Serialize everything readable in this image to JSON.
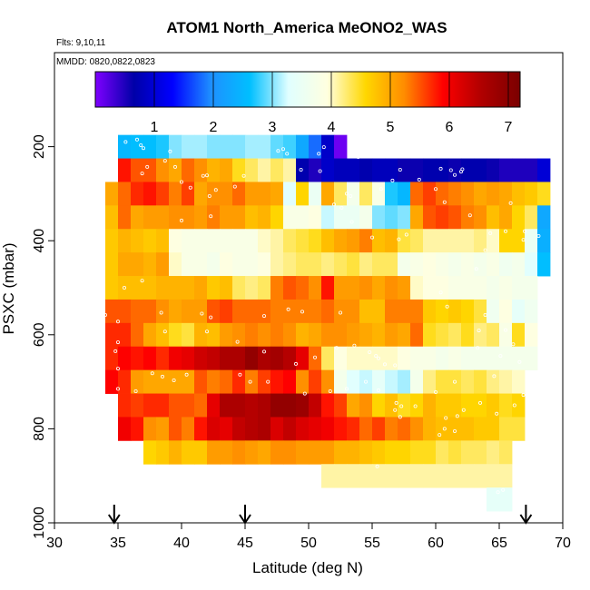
{
  "chart_data": {
    "type": "heatmap",
    "title": "ATOM1 North_America MeONO2_WAS",
    "flights_label": "Flts: 9,10,11",
    "dates_label": "MMDD: 0820,0822,0823",
    "xlabel": "Latitude (deg N)",
    "ylabel": "PSXC (mbar)",
    "xlim": [
      30,
      70
    ],
    "ylim": [
      1000,
      0
    ],
    "x_ticks": [
      "30",
      "35",
      "40",
      "45",
      "50",
      "55",
      "60",
      "65",
      "70"
    ],
    "y_ticks": [
      "200",
      "400",
      "600",
      "800",
      "1000"
    ],
    "colorbar": {
      "range": [
        0.0,
        7.2
      ],
      "ticks": [
        "1",
        "2",
        "3",
        "4",
        "5",
        "6",
        "7"
      ],
      "colors": [
        "#7f00ff",
        "#0000a8",
        "#0000ff",
        "#1e90ff",
        "#00bfff",
        "#e0ffff",
        "#ffffe0",
        "#ffd700",
        "#ff8c00",
        "#ff0000",
        "#b00000",
        "#7a0000"
      ]
    },
    "grid": false,
    "arrow_latitudes": [
      34.7,
      45.0,
      67.1
    ],
    "rows": [
      {
        "p": 200,
        "x0": 35.0,
        "dx": 1.0,
        "v": [
          2.5,
          2.6,
          2.6,
          2.7,
          3.0,
          3.1,
          3.1,
          3.0,
          3.0,
          3.0,
          3.1,
          3.1,
          2.9,
          2.8,
          2.3,
          1.8,
          0.9,
          0.1
        ]
      },
      {
        "p": 250,
        "x0": 35.0,
        "dx": 1.0,
        "v": [
          5.8,
          5.5,
          5.5,
          5.2,
          5.0,
          5.4,
          5.2,
          4.9,
          5.0,
          4.5,
          4.3,
          4.1,
          4.3,
          4.1,
          0.7,
          0.5,
          0.9,
          0.8,
          0.8,
          0.7,
          0.8,
          0.8,
          0.6,
          0.6,
          0.7,
          0.7,
          0.6,
          0.7,
          0.7,
          0.6,
          0.5,
          0.5,
          0.5,
          1.0
        ]
      },
      {
        "p": 300,
        "x0": 34.0,
        "dx": 1.0,
        "v": [
          5.0,
          5.4,
          5.7,
          5.8,
          5.6,
          5.3,
          5.6,
          5.0,
          5.2,
          5.2,
          5.4,
          5.1,
          5.1,
          5.0,
          3.3,
          4.6,
          3.5,
          5.0,
          4.3,
          3.7,
          4.3,
          3.8,
          2.7,
          2.5,
          5.4,
          5.6,
          5.4,
          5.3,
          5.2,
          5.0,
          5.1,
          5.0,
          4.8,
          4.7,
          4.5
        ]
      },
      {
        "p": 350,
        "x0": 34.0,
        "dx": 1.0,
        "v": [
          4.8,
          5.4,
          5.0,
          5.1,
          5.1,
          5.2,
          5.2,
          5.1,
          5.3,
          5.1,
          5.1,
          4.8,
          4.9,
          4.6,
          3.8,
          3.8,
          3.9,
          3.2,
          3.5,
          3.5,
          3.7,
          3.0,
          2.9,
          3.0,
          5.0,
          5.5,
          5.6,
          5.5,
          5.3,
          5.2,
          4.8,
          5.0,
          4.6,
          4.3,
          2.3
        ]
      },
      {
        "p": 400,
        "x0": 34.0,
        "dx": 1.0,
        "v": [
          4.7,
          4.9,
          4.8,
          4.7,
          4.8,
          3.9,
          3.8,
          3.8,
          3.8,
          3.8,
          3.8,
          3.8,
          4.0,
          4.1,
          4.3,
          4.4,
          4.5,
          4.8,
          5.0,
          5.1,
          5.3,
          4.8,
          4.9,
          4.4,
          4.3,
          4.1,
          4.1,
          4.1,
          4.1,
          4.2,
          4.0,
          4.6,
          4.6,
          3.5,
          2.4
        ]
      },
      {
        "p": 450,
        "x0": 34.0,
        "dx": 1.0,
        "v": [
          4.7,
          5.0,
          5.0,
          4.9,
          5.1,
          4.0,
          3.8,
          3.8,
          3.7,
          3.9,
          3.8,
          3.8,
          3.9,
          4.1,
          4.2,
          4.3,
          4.3,
          4.2,
          4.3,
          4.4,
          4.2,
          4.3,
          4.3,
          3.7,
          3.8,
          3.9,
          3.8,
          3.7,
          3.8,
          3.7,
          3.8,
          3.6,
          3.7,
          3.3,
          2.6
        ]
      },
      {
        "p": 500,
        "x0": 34.0,
        "dx": 1.0,
        "v": [
          4.7,
          4.8,
          4.8,
          4.8,
          4.9,
          4.9,
          4.9,
          5.0,
          4.7,
          4.8,
          4.3,
          4.2,
          4.3,
          5.3,
          5.5,
          5.4,
          5.2,
          5.8,
          5.1,
          5.1,
          5.2,
          5.0,
          5.2,
          5.1,
          4.0,
          3.9,
          3.9,
          3.8,
          3.8,
          3.8,
          3.7,
          3.8,
          3.7,
          3.7
        ]
      },
      {
        "p": 550,
        "x0": 34.0,
        "dx": 1.0,
        "v": [
          5.5,
          5.5,
          5.4,
          5.4,
          5.2,
          5.0,
          5.1,
          5.1,
          5.5,
          5.6,
          5.4,
          5.4,
          5.4,
          5.3,
          5.3,
          5.3,
          5.3,
          5.4,
          5.2,
          5.2,
          4.8,
          4.8,
          5.3,
          5.3,
          5.3,
          4.7,
          4.6,
          4.7,
          4.6,
          4.4,
          3.6,
          3.9,
          3.4,
          3.6
        ]
      },
      {
        "p": 600,
        "x0": 34.0,
        "dx": 1.0,
        "v": [
          5.7,
          5.7,
          5.4,
          5.0,
          4.8,
          4.5,
          4.4,
          4.9,
          4.8,
          5.1,
          5.2,
          5.3,
          5.2,
          5.3,
          5.2,
          4.9,
          5.0,
          5.2,
          5.2,
          5.1,
          5.0,
          4.9,
          5.1,
          5.0,
          5.4,
          4.5,
          4.4,
          4.3,
          4.5,
          4.2,
          4.3,
          3.8,
          4.5,
          3.9
        ]
      },
      {
        "p": 650,
        "x0": 34.0,
        "dx": 1.0,
        "v": [
          5.7,
          5.9,
          5.8,
          5.9,
          5.7,
          6.0,
          6.1,
          6.3,
          6.4,
          6.6,
          6.6,
          6.9,
          6.6,
          6.7,
          6.5,
          6.1,
          5.4,
          4.3,
          3.9,
          4.0,
          4.0,
          4.0,
          4.0,
          3.9,
          3.8,
          3.8,
          3.7,
          3.8,
          3.7,
          3.7,
          3.7,
          3.7,
          3.7,
          3.7
        ]
      },
      {
        "p": 700,
        "x0": 34.0,
        "dx": 1.0,
        "v": [
          5.9,
          5.7,
          5.1,
          5.0,
          5.0,
          5.0,
          5.0,
          5.5,
          5.3,
          5.4,
          5.7,
          5.3,
          5.6,
          5.8,
          5.9,
          5.2,
          5.6,
          5.2,
          3.7,
          3.3,
          3.2,
          3.4,
          3.2,
          3.1,
          3.7,
          4.2,
          4.4,
          4.4,
          4.3,
          4.4,
          4.2,
          4.1,
          4.0
        ]
      },
      {
        "p": 750,
        "x0": 35.0,
        "dx": 1.0,
        "v": [
          5.7,
          5.6,
          5.7,
          5.7,
          5.5,
          5.5,
          5.4,
          6.1,
          6.6,
          6.6,
          6.5,
          6.6,
          6.9,
          6.9,
          6.8,
          6.4,
          5.8,
          5.6,
          5.0,
          5.2,
          4.6,
          4.8,
          4.5,
          4.6,
          4.9,
          4.7,
          4.7,
          4.6,
          4.6,
          4.7,
          4.5,
          4.6
        ]
      },
      {
        "p": 800,
        "x0": 35.0,
        "dx": 1.0,
        "v": [
          6.0,
          5.8,
          5.2,
          5.1,
          5.5,
          5.3,
          5.8,
          6.2,
          6.1,
          6.4,
          6.5,
          6.6,
          6.2,
          6.4,
          6.2,
          6.1,
          6.0,
          5.8,
          5.7,
          5.4,
          5.6,
          5.3,
          5.4,
          5.2,
          4.9,
          4.8,
          4.8,
          4.8,
          4.7,
          4.7,
          4.4,
          4.4
        ]
      },
      {
        "p": 850,
        "x0": 37.0,
        "dx": 1.0,
        "v": [
          4.6,
          4.7,
          4.9,
          4.7,
          4.7,
          5.1,
          5.1,
          5.2,
          5.1,
          5.0,
          5.2,
          5.2,
          5.1,
          5.1,
          5.1,
          4.9,
          4.9,
          4.8,
          4.7,
          4.6,
          4.6,
          4.5,
          4.5,
          4.3,
          4.4,
          4.3,
          4.3,
          4.2,
          4.3
        ]
      },
      {
        "p": 900,
        "x0": 51.0,
        "dx": 1.0,
        "v": [
          4.1,
          4.1,
          4.1,
          4.1,
          4.1,
          4.1,
          4.1,
          4.1,
          4.1,
          4.1,
          4.1,
          4.1,
          4.1,
          4.1,
          4.1
        ]
      },
      {
        "p": 950,
        "x0": 64.0,
        "dx": 1.0,
        "v": [
          3.4,
          3.4
        ]
      }
    ],
    "samples": [
      [
        35.6,
        190
      ],
      [
        36.5,
        185
      ],
      [
        36.8,
        197
      ],
      [
        37.0,
        203
      ],
      [
        39.1,
        210
      ],
      [
        38.7,
        230
      ],
      [
        37.3,
        243
      ],
      [
        36.9,
        257
      ],
      [
        39.5,
        243
      ],
      [
        42.0,
        261
      ],
      [
        41.7,
        262
      ],
      [
        44.9,
        262
      ],
      [
        40.0,
        275
      ],
      [
        40.7,
        287
      ],
      [
        42.7,
        292
      ],
      [
        44.2,
        285
      ],
      [
        42.2,
        305
      ],
      [
        42.3,
        348
      ],
      [
        40.0,
        357
      ],
      [
        47.6,
        209
      ],
      [
        48.0,
        205
      ],
      [
        48.3,
        215
      ],
      [
        50.8,
        215
      ],
      [
        51.2,
        201
      ],
      [
        50.9,
        252
      ],
      [
        53.9,
        222
      ],
      [
        49.4,
        249
      ],
      [
        57.2,
        249
      ],
      [
        60.4,
        247
      ],
      [
        61.2,
        250
      ],
      [
        62.1,
        248
      ],
      [
        62.0,
        253
      ],
      [
        61.5,
        260
      ],
      [
        55.7,
        290
      ],
      [
        56.6,
        272
      ],
      [
        58.7,
        270
      ],
      [
        60.0,
        290
      ],
      [
        60.7,
        318
      ],
      [
        62.7,
        346
      ],
      [
        64.3,
        384
      ],
      [
        63.9,
        420
      ],
      [
        63.2,
        460
      ],
      [
        65.5,
        380
      ],
      [
        67.0,
        380
      ],
      [
        66.9,
        398
      ],
      [
        68.1,
        390
      ],
      [
        65.9,
        320
      ],
      [
        52.6,
        330
      ],
      [
        53.3,
        305
      ],
      [
        53.0,
        300
      ],
      [
        52.0,
        323
      ],
      [
        53.4,
        360
      ],
      [
        55.0,
        393
      ],
      [
        57.1,
        397
      ],
      [
        57.7,
        387
      ],
      [
        36.9,
        485
      ],
      [
        35.5,
        500
      ],
      [
        34.0,
        558
      ],
      [
        35.0,
        572
      ],
      [
        35.0,
        616
      ],
      [
        34.8,
        635
      ],
      [
        35.0,
        672
      ],
      [
        35.0,
        715
      ],
      [
        34.6,
        773
      ],
      [
        34.8,
        792
      ],
      [
        36.4,
        720
      ],
      [
        38.5,
        689
      ],
      [
        37.7,
        682
      ],
      [
        39.4,
        697
      ],
      [
        40.4,
        685
      ],
      [
        44.6,
        685
      ],
      [
        45.4,
        700
      ],
      [
        46.8,
        700
      ],
      [
        49.7,
        725
      ],
      [
        51.7,
        720
      ],
      [
        53.0,
        715
      ],
      [
        54.5,
        700
      ],
      [
        55.5,
        718
      ],
      [
        56.9,
        745
      ],
      [
        58.4,
        752
      ],
      [
        60.8,
        777
      ],
      [
        61.7,
        773
      ],
      [
        64.8,
        768
      ],
      [
        66.2,
        750
      ],
      [
        66.9,
        728
      ],
      [
        67.7,
        715
      ],
      [
        63.5,
        745
      ],
      [
        62.2,
        760
      ],
      [
        60.0,
        722
      ],
      [
        56.8,
        665
      ],
      [
        56.0,
        663
      ],
      [
        55.5,
        650
      ],
      [
        55.3,
        645
      ],
      [
        54.8,
        637
      ],
      [
        53.6,
        623
      ],
      [
        52.2,
        628
      ],
      [
        50.5,
        648
      ],
      [
        49.0,
        662
      ],
      [
        46.5,
        636
      ],
      [
        44.4,
        615
      ],
      [
        42.0,
        593
      ],
      [
        38.7,
        593
      ],
      [
        41.6,
        555
      ],
      [
        38.4,
        553
      ],
      [
        42.3,
        563
      ],
      [
        46.5,
        560
      ],
      [
        48.4,
        546
      ],
      [
        49.5,
        551
      ],
      [
        52.5,
        553
      ],
      [
        60.9,
        540
      ],
      [
        60.4,
        510
      ],
      [
        63.9,
        558
      ],
      [
        63.4,
        591
      ],
      [
        65.5,
        590
      ],
      [
        66.1,
        620
      ],
      [
        63.3,
        628
      ],
      [
        65.1,
        645
      ],
      [
        66.6,
        658
      ],
      [
        64.6,
        688
      ],
      [
        61.5,
        700
      ],
      [
        57.3,
        752
      ],
      [
        56.8,
        760
      ],
      [
        57.2,
        775
      ],
      [
        60.7,
        800
      ],
      [
        61.5,
        805
      ],
      [
        60.3,
        813
      ],
      [
        55.4,
        880
      ],
      [
        65.3,
        930
      ],
      [
        64.9,
        935
      ]
    ]
  }
}
